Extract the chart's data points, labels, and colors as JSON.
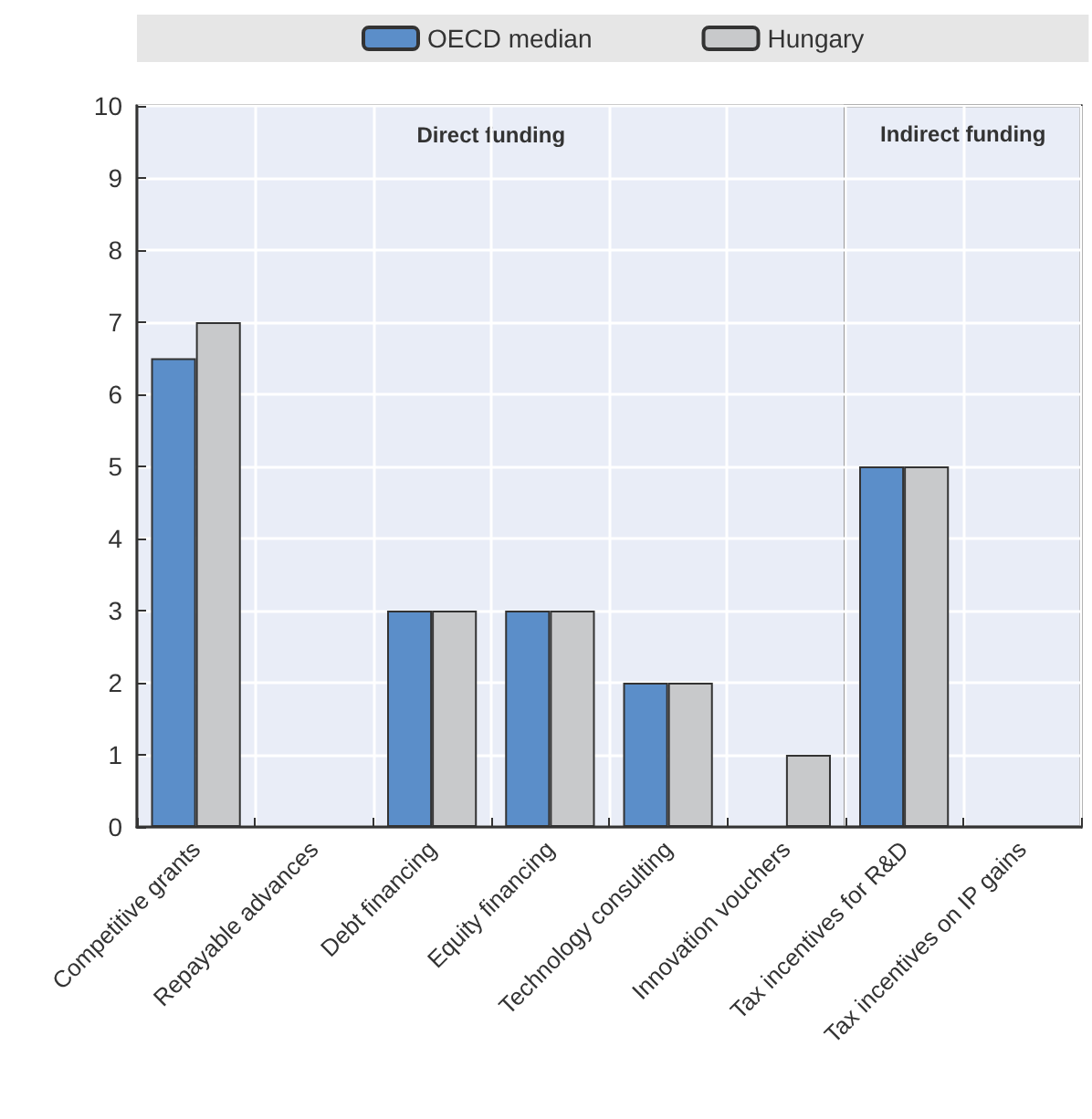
{
  "chart_data": {
    "type": "bar",
    "categories": [
      "Competitive grants",
      "Repayable advances",
      "Debt financing",
      "Equity financing",
      "Technology consulting",
      "Innovation vouchers",
      "Tax incentives for R&D",
      "Tax incentives on IP gains"
    ],
    "series": [
      {
        "name": "OECD median",
        "color": "#5b8ec9",
        "values": [
          6.5,
          0,
          3,
          3,
          2,
          0,
          5,
          0
        ]
      },
      {
        "name": "Hungary",
        "color": "#c8c9cb",
        "values": [
          7,
          0,
          3,
          3,
          2,
          1,
          5,
          0
        ]
      }
    ],
    "ylim": [
      0,
      10
    ],
    "yticks": [
      0,
      1,
      2,
      3,
      4,
      5,
      6,
      7,
      8,
      9,
      10
    ],
    "bands": [
      {
        "axis": "x",
        "from": "Competitive grants",
        "to": "Innovation vouchers",
        "label": "Direct funding",
        "color": "#e9edf7"
      },
      {
        "axis": "x",
        "from": "Tax incentives for R&D",
        "to": "Tax incentives on IP gains",
        "label": "Indirect funding",
        "color": "#e9edf7"
      }
    ],
    "grid": true,
    "legend": "top"
  }
}
